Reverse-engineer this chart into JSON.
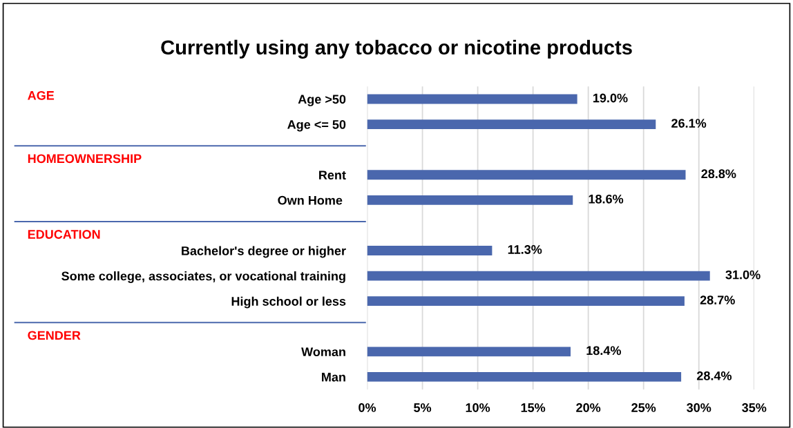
{
  "chart_data": {
    "type": "bar",
    "orientation": "horizontal",
    "title": "Currently using any tobacco or nicotine products",
    "categories": [
      "Age >50",
      "Age <= 50",
      null,
      "Rent",
      "Own Home ",
      null,
      "Bachelor's degree or higher",
      "Some college, associates, or vocational training",
      "High school or less",
      null,
      "Woman",
      "Man"
    ],
    "values": [
      19.0,
      26.1,
      null,
      28.8,
      18.6,
      null,
      11.3,
      31.0,
      28.7,
      null,
      18.4,
      28.4
    ],
    "value_labels": [
      "19.0%",
      "26.1%",
      null,
      "28.8%",
      "18.6%",
      null,
      "11.3%",
      "31.0%",
      "28.7%",
      null,
      "18.4%",
      "28.4%"
    ],
    "color": "#4a67ad",
    "xlim": [
      0,
      35
    ],
    "xticks": [
      {
        "value": 0,
        "label": "0%"
      },
      {
        "value": 5,
        "label": "5%"
      },
      {
        "value": 10,
        "label": "10%"
      },
      {
        "value": 15,
        "label": "15%"
      },
      {
        "value": 20,
        "label": "20%"
      },
      {
        "value": 25,
        "label": "25%"
      },
      {
        "value": 30,
        "label": "30%"
      },
      {
        "value": 35,
        "label": "35%"
      }
    ],
    "grid": "x",
    "annotations": [
      "AGE",
      "HOMEOWNERSHIP",
      "EDUCATION",
      "GENDER"
    ]
  }
}
